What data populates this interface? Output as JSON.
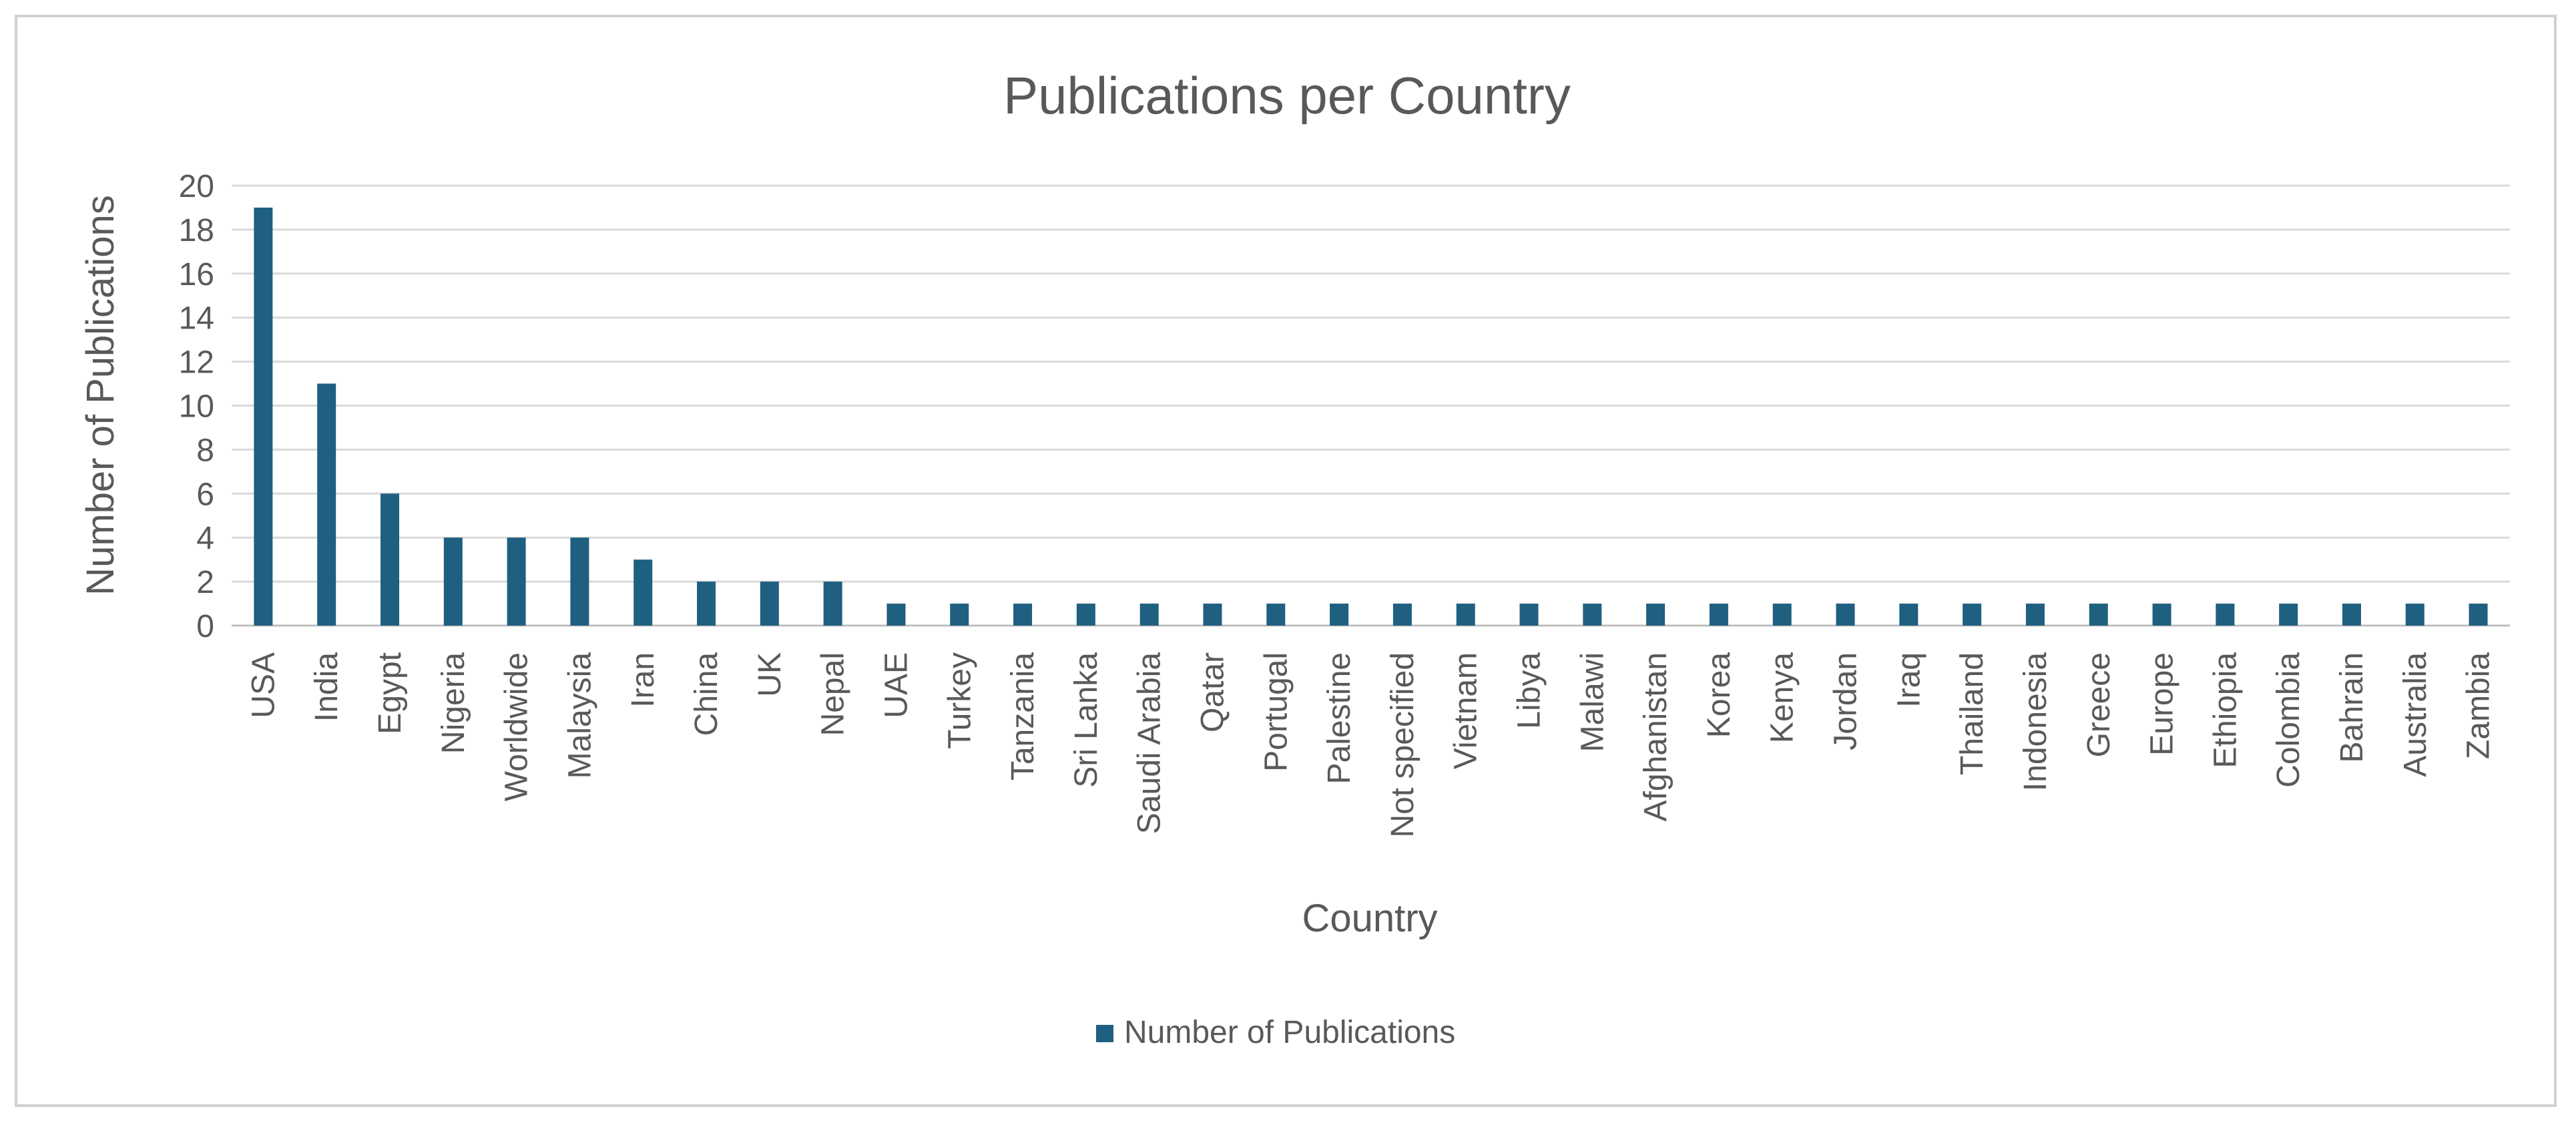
{
  "chart_data": {
    "type": "bar",
    "title": "Publications per Country",
    "xlabel": "Country",
    "ylabel": "Number of Publications",
    "ylim": [
      0,
      20
    ],
    "yticks": [
      0,
      2,
      4,
      6,
      8,
      10,
      12,
      14,
      16,
      18,
      20
    ],
    "grid": true,
    "legend_position": "bottom",
    "bar_color": "#1f5f7f",
    "categories": [
      "USA",
      "India",
      "Egypt",
      "Nigeria",
      "Worldwide",
      "Malaysia",
      "Iran",
      "China",
      "UK",
      "Nepal",
      "UAE",
      "Turkey",
      "Tanzania",
      "Sri Lanka",
      "Saudi Arabia",
      "Qatar",
      "Portugal",
      "Palestine",
      "Not specified",
      "Vietnam",
      "Libya",
      "Malawi",
      "Afghanistan",
      "Korea",
      "Kenya",
      "Jordan",
      "Iraq",
      "Thailand",
      "Indonesia",
      "Greece",
      "Europe",
      "Ethiopia",
      "Colombia",
      "Bahrain",
      "Australia",
      "Zambia"
    ],
    "series": [
      {
        "name": "Number of Publications",
        "values": [
          19,
          11,
          6,
          4,
          4,
          4,
          3,
          2,
          2,
          2,
          1,
          1,
          1,
          1,
          1,
          1,
          1,
          1,
          1,
          1,
          1,
          1,
          1,
          1,
          1,
          1,
          1,
          1,
          1,
          1,
          1,
          1,
          1,
          1,
          1,
          1
        ]
      }
    ]
  }
}
